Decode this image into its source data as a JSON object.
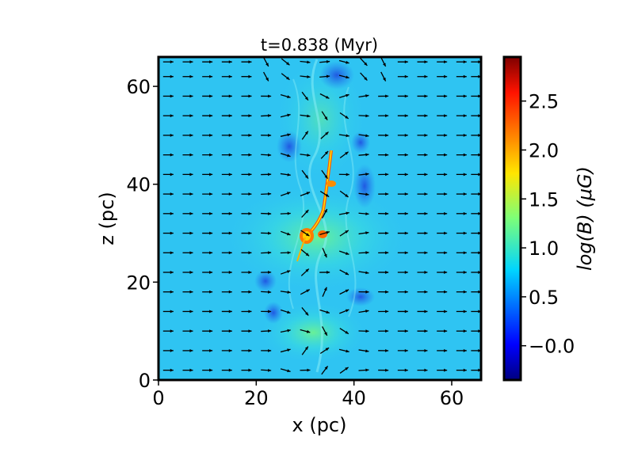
{
  "chart_data": {
    "type": "heatmap",
    "title": "t=0.838 (Myr)",
    "xlabel": "x (pc)",
    "ylabel": "z (pc)",
    "xlim": [
      0,
      66
    ],
    "ylim": [
      0,
      66
    ],
    "x_ticks": [
      0,
      20,
      40,
      60
    ],
    "y_ticks": [
      0,
      20,
      40,
      60
    ],
    "colorbar": {
      "label": "log(B) (μG)",
      "range": [
        -0.35,
        2.95
      ],
      "ticks": [
        -0.0,
        0.5,
        1.0,
        1.5,
        2.0,
        2.5
      ],
      "tick_labels": [
        "−0.0",
        "0.5",
        "1.0",
        "1.5",
        "2.0",
        "2.5"
      ],
      "colormap": "jet"
    },
    "vector_field": {
      "description_free": true,
      "grid_x": [
        2,
        6,
        10,
        14,
        18,
        22,
        26,
        30,
        34,
        38,
        42,
        46,
        50,
        54,
        58,
        62,
        65
      ],
      "grid_z": [
        2,
        6,
        10,
        14,
        18,
        22,
        26,
        30,
        34,
        38,
        42,
        46,
        50,
        54,
        58,
        62,
        65
      ]
    },
    "colors": {
      "background_field": "#2fc4f2",
      "frame": "#000000",
      "arrow": "#000000"
    }
  }
}
